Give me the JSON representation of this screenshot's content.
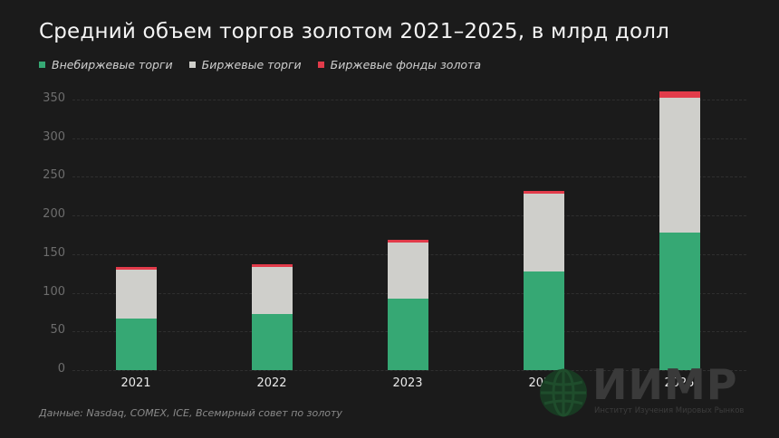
{
  "title": "Средний объем торгов золотом 2021–2025, в млрд долл",
  "legend": [
    {
      "label": "Внебиржевые торги",
      "color": "#36a874"
    },
    {
      "label": "Биржевые торги",
      "color": "#cfcfcb"
    },
    {
      "label": "Биржевые фонды золота",
      "color": "#e23b4a"
    }
  ],
  "source": "Данные: Nasdaq, COMEX, ICE, Всемирный совет по золоту",
  "logo": {
    "name": "ИИМР",
    "subtitle": "Институт Изучения Мировых Рынков"
  },
  "chart_data": {
    "type": "bar",
    "stacked": true,
    "title": "Средний объем торгов золотом 2021–2025, в млрд долл",
    "xlabel": "",
    "ylabel": "",
    "categories": [
      "2021",
      "2022",
      "2023",
      "2024",
      "2025"
    ],
    "series": [
      {
        "name": "Внебиржевые торги",
        "color": "#36a874",
        "values": [
          67,
          73,
          93,
          127,
          178
        ]
      },
      {
        "name": "Биржевые торги",
        "color": "#cfcfcb",
        "values": [
          63,
          60,
          72,
          101,
          174
        ]
      },
      {
        "name": "Биржевые фонды золота",
        "color": "#e23b4a",
        "values": [
          3,
          4,
          3,
          4,
          8
        ]
      }
    ],
    "yticks": [
      "0",
      "50",
      "100",
      "150",
      "200",
      "250",
      "300",
      "350"
    ],
    "ylim": [
      0,
      350
    ],
    "grid": true,
    "legend_position": "top-left"
  }
}
